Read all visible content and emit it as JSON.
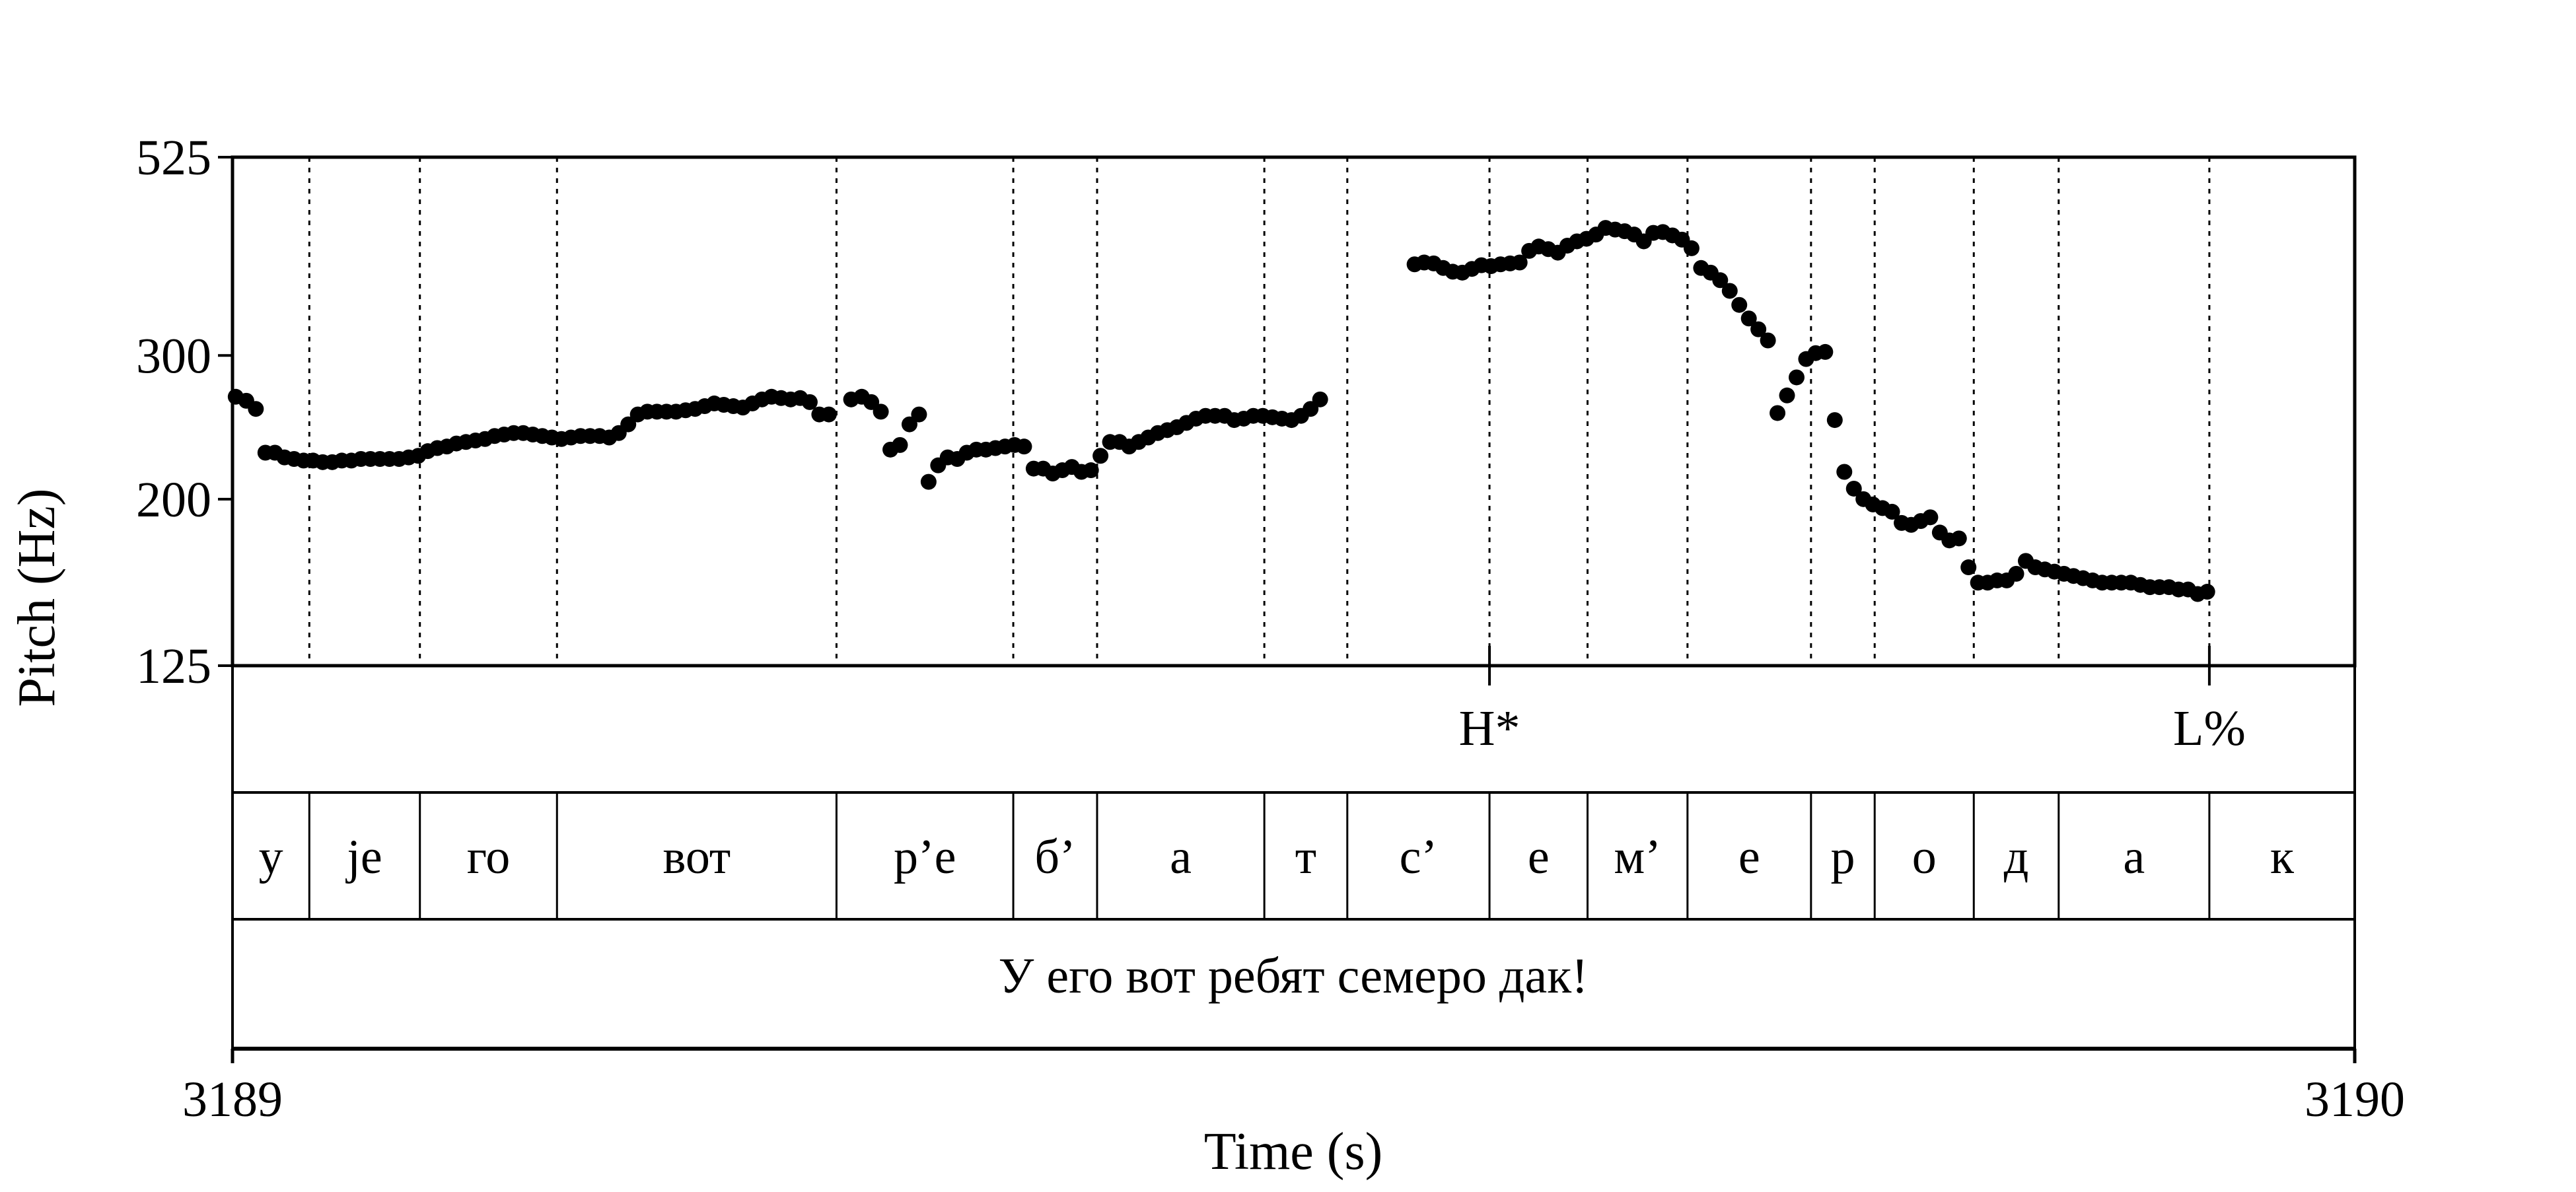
{
  "chart_data": {
    "type": "scatter",
    "ylabel": "Pitch (Hz)",
    "xlabel": "Time (s)",
    "xlim": [
      3189,
      3190
    ],
    "ylim": [
      125,
      525
    ],
    "y_scale": "log",
    "y_ticks": [
      125,
      200,
      300,
      525
    ],
    "x_tick_labels": [
      "3189",
      "3190"
    ],
    "segment_boundaries": [
      0.0362,
      0.0883,
      0.1529,
      0.2846,
      0.3679,
      0.4074,
      0.4862,
      0.5253,
      0.5923,
      0.6385,
      0.6856,
      0.7438,
      0.7738,
      0.8205,
      0.8605,
      0.9315
    ],
    "segments": [
      "у",
      "jе",
      "го",
      "вот",
      "р’е",
      "б’",
      "а",
      "т",
      "с’",
      "е",
      "м’",
      "е",
      "р",
      "о",
      "д",
      "а",
      "к"
    ],
    "tones": [
      {
        "label": "H*",
        "x": 0.5923
      },
      {
        "label": "L%",
        "x": 0.9315
      }
    ],
    "sentence": "У его вот ребят семеро дак!",
    "series": [
      {
        "points": [
          [
            0.0015,
            267
          ],
          [
            0.0065,
            264
          ],
          [
            0.011,
            258
          ],
          [
            0.0155,
            228
          ],
          [
            0.02,
            228
          ],
          [
            0.0245,
            225
          ],
          [
            0.029,
            224
          ],
          [
            0.0335,
            223
          ],
          [
            0.038,
            223
          ],
          [
            0.0425,
            222
          ],
          [
            0.047,
            222
          ],
          [
            0.0515,
            223
          ],
          [
            0.056,
            223
          ],
          [
            0.0605,
            224
          ],
          [
            0.065,
            224
          ],
          [
            0.0695,
            224
          ],
          [
            0.074,
            224
          ],
          [
            0.0785,
            224
          ],
          [
            0.083,
            225
          ],
          [
            0.0875,
            226
          ],
          [
            0.092,
            229
          ],
          [
            0.0965,
            231
          ],
          [
            0.101,
            232
          ],
          [
            0.1055,
            234
          ],
          [
            0.11,
            235
          ],
          [
            0.1145,
            236
          ],
          [
            0.119,
            237
          ],
          [
            0.1235,
            239
          ],
          [
            0.128,
            240
          ],
          [
            0.1325,
            241
          ],
          [
            0.137,
            241
          ],
          [
            0.1415,
            240
          ],
          [
            0.146,
            239
          ],
          [
            0.1505,
            238
          ],
          [
            0.155,
            237
          ],
          [
            0.1595,
            238
          ],
          [
            0.164,
            239
          ],
          [
            0.1685,
            239
          ],
          [
            0.173,
            239
          ],
          [
            0.1775,
            238
          ],
          [
            0.182,
            241
          ],
          [
            0.1865,
            247
          ],
          [
            0.191,
            254
          ],
          [
            0.1955,
            256
          ],
          [
            0.2,
            256
          ],
          [
            0.2045,
            256
          ],
          [
            0.209,
            256
          ],
          [
            0.2135,
            257
          ],
          [
            0.218,
            258
          ],
          [
            0.2225,
            260
          ],
          [
            0.227,
            262
          ],
          [
            0.2315,
            261
          ],
          [
            0.236,
            260
          ],
          [
            0.2405,
            259
          ],
          [
            0.245,
            262
          ],
          [
            0.2495,
            265
          ],
          [
            0.254,
            267
          ],
          [
            0.2585,
            266
          ],
          [
            0.263,
            265
          ],
          [
            0.2675,
            266
          ],
          [
            0.272,
            263
          ],
          [
            0.2765,
            254
          ],
          [
            0.281,
            254
          ],
          [
            0.2915,
            265
          ],
          [
            0.2965,
            267
          ],
          [
            0.301,
            263
          ],
          [
            0.3055,
            256
          ],
          [
            0.31,
            230
          ],
          [
            0.3145,
            233
          ],
          [
            0.319,
            247
          ],
          [
            0.3235,
            254
          ],
          [
            0.328,
            210
          ],
          [
            0.3325,
            220
          ],
          [
            0.337,
            225
          ],
          [
            0.3415,
            224
          ],
          [
            0.346,
            228
          ],
          [
            0.3505,
            230
          ],
          [
            0.355,
            230
          ],
          [
            0.3595,
            231
          ],
          [
            0.364,
            232
          ],
          [
            0.3685,
            233
          ],
          [
            0.373,
            232
          ],
          [
            0.3775,
            218
          ],
          [
            0.382,
            218
          ],
          [
            0.3865,
            215
          ],
          [
            0.391,
            217
          ],
          [
            0.3955,
            219
          ],
          [
            0.4,
            216
          ],
          [
            0.4045,
            217
          ],
          [
            0.409,
            226
          ],
          [
            0.4135,
            235
          ],
          [
            0.418,
            235
          ],
          [
            0.4225,
            232
          ],
          [
            0.427,
            235
          ],
          [
            0.4315,
            238
          ],
          [
            0.436,
            241
          ],
          [
            0.4405,
            243
          ],
          [
            0.445,
            245
          ],
          [
            0.4495,
            248
          ],
          [
            0.454,
            251
          ],
          [
            0.4585,
            253
          ],
          [
            0.463,
            253
          ],
          [
            0.4675,
            253
          ],
          [
            0.472,
            250
          ],
          [
            0.4765,
            251
          ],
          [
            0.481,
            253
          ],
          [
            0.4855,
            253
          ],
          [
            0.49,
            252
          ],
          [
            0.4945,
            251
          ],
          [
            0.499,
            250
          ],
          [
            0.5035,
            253
          ],
          [
            0.508,
            258
          ],
          [
            0.5125,
            265
          ],
          [
            0.557,
            388
          ],
          [
            0.5615,
            390
          ],
          [
            0.566,
            389
          ],
          [
            0.5705,
            384
          ],
          [
            0.575,
            380
          ],
          [
            0.5795,
            379
          ],
          [
            0.584,
            383
          ],
          [
            0.5885,
            387
          ],
          [
            0.593,
            386
          ],
          [
            0.5975,
            388
          ],
          [
            0.602,
            389
          ],
          [
            0.6065,
            390
          ],
          [
            0.611,
            403
          ],
          [
            0.6155,
            408
          ],
          [
            0.62,
            405
          ],
          [
            0.6245,
            401
          ],
          [
            0.629,
            409
          ],
          [
            0.6335,
            414
          ],
          [
            0.638,
            417
          ],
          [
            0.6425,
            422
          ],
          [
            0.647,
            430
          ],
          [
            0.6515,
            428
          ],
          [
            0.656,
            426
          ],
          [
            0.6605,
            422
          ],
          [
            0.665,
            414
          ],
          [
            0.6695,
            424
          ],
          [
            0.674,
            425
          ],
          [
            0.6785,
            421
          ],
          [
            0.683,
            416
          ],
          [
            0.6875,
            406
          ],
          [
            0.692,
            384
          ],
          [
            0.6965,
            379
          ],
          [
            0.701,
            371
          ],
          [
            0.7055,
            360
          ],
          [
            0.71,
            346
          ],
          [
            0.7145,
            333
          ],
          [
            0.719,
            323
          ],
          [
            0.7235,
            313
          ],
          [
            0.728,
            255
          ],
          [
            0.7325,
            268
          ],
          [
            0.737,
            282
          ],
          [
            0.7415,
            297
          ],
          [
            0.746,
            302
          ],
          [
            0.7505,
            303
          ],
          [
            0.755,
            250
          ],
          [
            0.7595,
            216
          ],
          [
            0.764,
            206
          ],
          [
            0.7685,
            200
          ],
          [
            0.773,
            197
          ],
          [
            0.7775,
            195
          ],
          [
            0.782,
            193
          ],
          [
            0.7865,
            187
          ],
          [
            0.791,
            186
          ],
          [
            0.7955,
            188
          ],
          [
            0.8,
            190
          ],
          [
            0.8045,
            182
          ],
          [
            0.809,
            178
          ],
          [
            0.8135,
            179
          ],
          [
            0.818,
            165
          ],
          [
            0.8225,
            158
          ],
          [
            0.827,
            158
          ],
          [
            0.8315,
            159
          ],
          [
            0.836,
            159
          ],
          [
            0.8405,
            162
          ],
          [
            0.845,
            168
          ],
          [
            0.8495,
            165
          ],
          [
            0.854,
            164
          ],
          [
            0.8585,
            163
          ],
          [
            0.863,
            162
          ],
          [
            0.8675,
            161
          ],
          [
            0.872,
            160
          ],
          [
            0.8765,
            159
          ],
          [
            0.881,
            158
          ],
          [
            0.8855,
            158
          ],
          [
            0.89,
            158
          ],
          [
            0.8945,
            158
          ],
          [
            0.899,
            157
          ],
          [
            0.9035,
            156
          ],
          [
            0.908,
            156
          ],
          [
            0.9125,
            156
          ],
          [
            0.917,
            155
          ],
          [
            0.9215,
            155
          ],
          [
            0.926,
            153
          ],
          [
            0.9305,
            154
          ]
        ]
      }
    ]
  }
}
